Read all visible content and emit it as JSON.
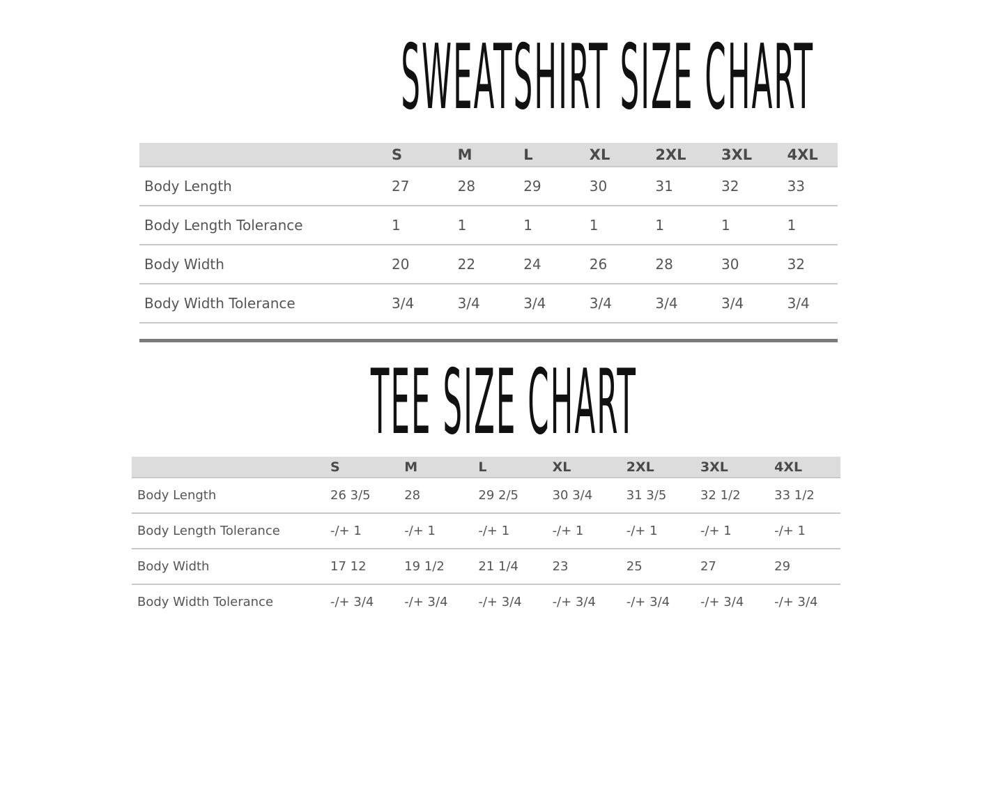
{
  "sweatshirt": {
    "title": "SWEATSHIRT SIZE CHART",
    "sizes": [
      "S",
      "M",
      "L",
      "XL",
      "2XL",
      "3XL",
      "4XL"
    ],
    "rows": [
      {
        "label": "Body Length",
        "values": [
          "27",
          "28",
          "29",
          "30",
          "31",
          "32",
          "33"
        ]
      },
      {
        "label": "Body Length Tolerance",
        "values": [
          "1",
          "1",
          "1",
          "1",
          "1",
          "1",
          "1"
        ]
      },
      {
        "label": "Body Width",
        "values": [
          "20",
          "22",
          "24",
          "26",
          "28",
          "30",
          "32"
        ]
      },
      {
        "label": "Body Width Tolerance",
        "values": [
          "3/4",
          "3/4",
          "3/4",
          "3/4",
          "3/4",
          "3/4",
          "3/4"
        ]
      }
    ]
  },
  "tee": {
    "title": "TEE SIZE CHART",
    "sizes": [
      "S",
      "M",
      "L",
      "XL",
      "2XL",
      "3XL",
      "4XL"
    ],
    "rows": [
      {
        "label": "Body Length",
        "values": [
          "26 3/5",
          "28",
          "29 2/5",
          "30 3/4",
          "31 3/5",
          "32 1/2",
          "33 1/2"
        ]
      },
      {
        "label": "Body Length Tolerance",
        "values": [
          "-/+ 1",
          "-/+ 1",
          "-/+ 1",
          "-/+ 1",
          "-/+ 1",
          "-/+ 1",
          "-/+ 1"
        ]
      },
      {
        "label": "Body Width",
        "values": [
          "17 12",
          "19 1/2",
          "21 1/4",
          "23",
          "25",
          "27",
          "29"
        ]
      },
      {
        "label": "Body Width Tolerance",
        "values": [
          "-/+ 3/4",
          "-/+ 3/4",
          "-/+ 3/4",
          "-/+ 3/4",
          "-/+ 3/4",
          "-/+ 3/4",
          "-/+ 3/4"
        ]
      }
    ]
  }
}
